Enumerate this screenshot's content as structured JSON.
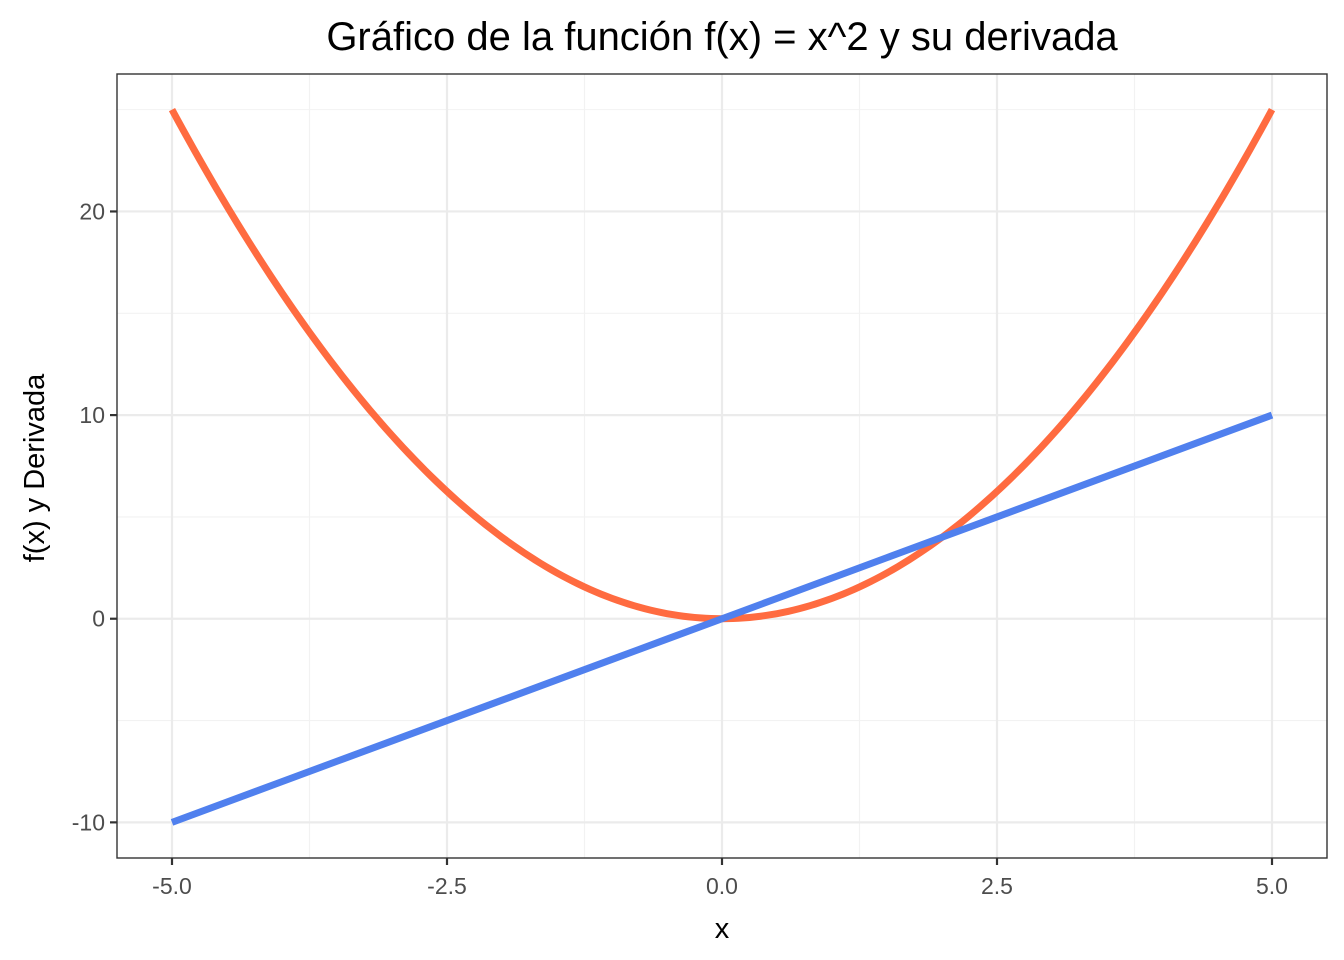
{
  "chart_data": {
    "type": "line",
    "title": "Gráfico de la función f(x) = x^2 y su derivada",
    "xlabel": "x",
    "ylabel": "f(x) y Derivada",
    "xlim": [
      -5.5,
      5.5
    ],
    "ylim": [
      -11.75,
      26.75
    ],
    "x_ticks": [
      -5.0,
      -2.5,
      0.0,
      2.5,
      5.0
    ],
    "x_tick_labels": [
      "-5.0",
      "-2.5",
      "0.0",
      "2.5",
      "5.0"
    ],
    "y_ticks": [
      -10,
      0,
      10,
      20
    ],
    "y_tick_labels": [
      "-10",
      "0",
      "10",
      "20"
    ],
    "x_minor_ticks": [
      -3.75,
      -1.25,
      1.25,
      3.75
    ],
    "y_minor_ticks": [
      -5,
      5,
      15,
      25
    ],
    "grid": true,
    "legend": "none",
    "x": [
      -5,
      -4.5,
      -4,
      -3.5,
      -3,
      -2.5,
      -2,
      -1.5,
      -1,
      -0.5,
      0,
      0.5,
      1,
      1.5,
      2,
      2.5,
      3,
      3.5,
      4,
      4.5,
      5
    ],
    "series": [
      {
        "color": "#FF6B40",
        "values": [
          25,
          20.25,
          16,
          12.25,
          9,
          6.25,
          4,
          2.25,
          1,
          0.25,
          0,
          0.25,
          1,
          2.25,
          4,
          6.25,
          9,
          12.25,
          16,
          20.25,
          25
        ]
      },
      {
        "color": "#5080EE",
        "values": [
          -10,
          -9,
          -8,
          -7,
          -6,
          -5,
          -4,
          -3,
          -2,
          -1,
          0,
          1,
          2,
          3,
          4,
          5,
          6,
          7,
          8,
          9,
          10
        ]
      }
    ]
  }
}
